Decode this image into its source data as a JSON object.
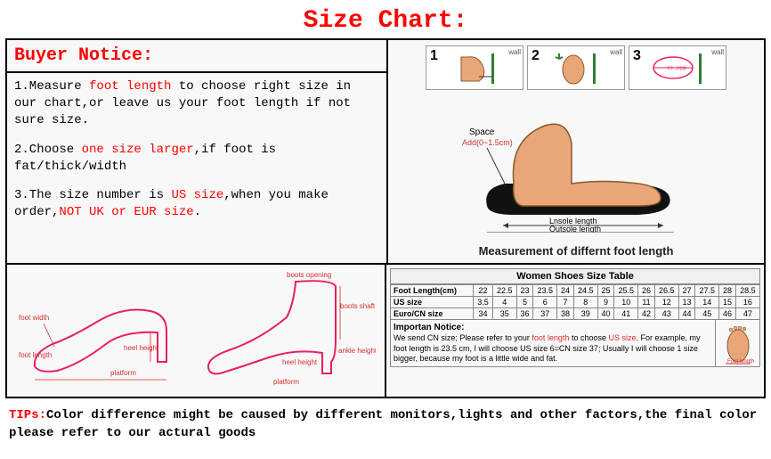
{
  "header": "Size Chart:",
  "buyerNotice": {
    "title": "Buyer Notice:",
    "item1_pre": "1.Measure ",
    "item1_hl": "foot length",
    "item1_post": " to choose right size in our chart,or leave us your foot length if not sure size.",
    "item2_pre": "2.Choose ",
    "item2_hl": "one size larger",
    "item2_post": ",if foot is fat/thick/width",
    "item3_pre": "3.The size number is ",
    "item3_hl1": "US size",
    "item3_mid": ",when you make order,",
    "item3_hl2": "NOT UK or EUR size",
    "item3_post": "."
  },
  "measure": {
    "step1": "1",
    "step2": "2",
    "step3": "3",
    "wall": "wall",
    "space_add": "Space",
    "space_val": "Add(0~1.5cm)",
    "lnsole": "Lnsole length",
    "outsole": "Outsole length",
    "caption": "Measurement of differnt foot length"
  },
  "shoeDiagram": {
    "foot_length": "foot length",
    "foot_width": "foot width",
    "heel_height": "heel height",
    "platform": "platform",
    "boots_opening": "boots opening",
    "boots_shaft": "boots shaft",
    "ankle_height": "ankle height"
  },
  "sizeTable": {
    "title": "Women Shoes Size Table",
    "rows": [
      {
        "label": "Foot Length(cm)",
        "cells": [
          "22",
          "22.5",
          "23",
          "23.5",
          "24",
          "24.5",
          "25",
          "25.5",
          "26",
          "26.5",
          "27",
          "27.5",
          "28",
          "28.5"
        ]
      },
      {
        "label": "US size",
        "cells": [
          "3.5",
          "4",
          "5",
          "6",
          "7",
          "8",
          "9",
          "10",
          "11",
          "12",
          "13",
          "14",
          "15",
          "16"
        ]
      },
      {
        "label": "Euro/CN size",
        "cells": [
          "34",
          "35",
          "36",
          "37",
          "38",
          "39",
          "40",
          "41",
          "42",
          "43",
          "44",
          "45",
          "46",
          "47"
        ]
      }
    ],
    "important_title": "Importan Notice:",
    "important_pre": "We send CN size; Please refer to your ",
    "important_hl1": "foot length",
    "important_mid": " to choose ",
    "important_hl2": "US size",
    "important_post": ". For example, my foot length is 23.5 cm, I will choose US size 6=CN size 37; Usually I will choose 1 size bigger, because my foot is a little wide and fat."
  },
  "tips": {
    "label": "TIPs:",
    "text": "Color difference might be caused by different monitors,lights and other factors,the final color please refer to our actural goods"
  },
  "colors": {
    "red": "#ff0000",
    "skin": "#e8a679",
    "sole": "#111111",
    "pink_line": "#e91e63"
  }
}
